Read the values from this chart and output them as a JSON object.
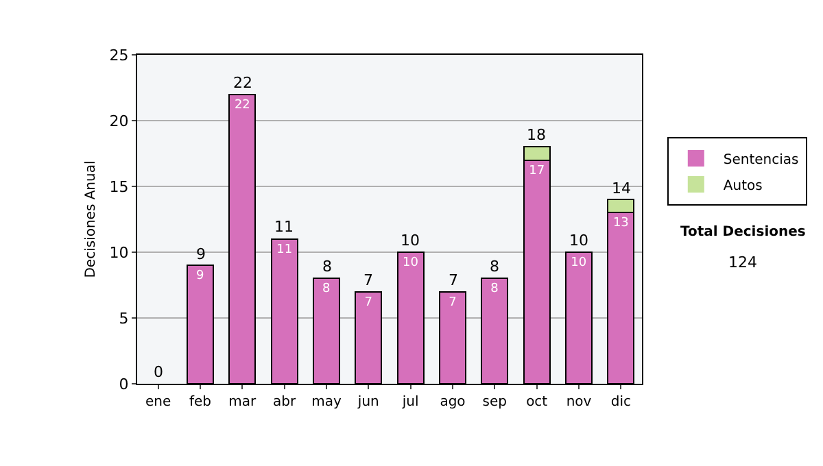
{
  "chart_data": {
    "type": "bar",
    "stacked": true,
    "ylabel": "Decisiones Anual",
    "categories": [
      "ene",
      "feb",
      "mar",
      "abr",
      "may",
      "jun",
      "jul",
      "ago",
      "sep",
      "oct",
      "nov",
      "dic"
    ],
    "series": [
      {
        "name": "Sentencias",
        "color": "#d670bb",
        "values": [
          0,
          9,
          22,
          11,
          8,
          7,
          10,
          7,
          8,
          17,
          10,
          13
        ],
        "value_labels": [
          null,
          "9",
          "22",
          "11",
          "8",
          "7",
          "10",
          "7",
          "8",
          "17",
          "10",
          "13"
        ]
      },
      {
        "name": "Autos",
        "color": "#c6e39a",
        "values": [
          0,
          0,
          0,
          0,
          0,
          0,
          0,
          0,
          0,
          1,
          0,
          1
        ]
      }
    ],
    "totals": [
      "0",
      "9",
      "22",
      "11",
      "8",
      "7",
      "10",
      "7",
      "8",
      "18",
      "10",
      "14"
    ],
    "ylim": [
      0,
      25
    ],
    "yticks": [
      0,
      5,
      10,
      15,
      20,
      25
    ],
    "grid": "y",
    "legend": "right",
    "annotations": [
      "Total Decisiones",
      "124"
    ]
  }
}
